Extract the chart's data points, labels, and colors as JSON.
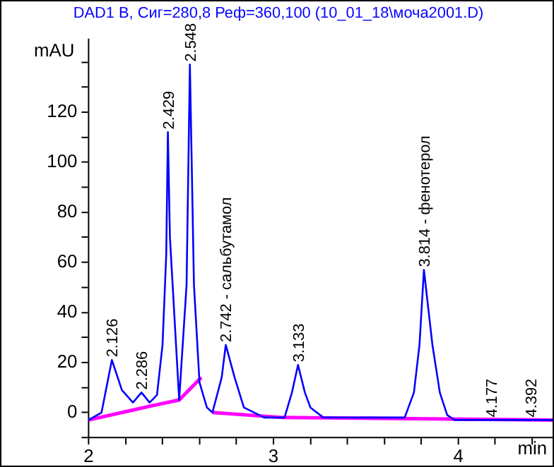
{
  "chart_data": {
    "type": "line",
    "title": "DAD1 B, Сиг=280,8 Реф=360,100 (10_01_18\\моча2001.D)",
    "xlabel": "min",
    "ylabel": "mAU",
    "series": [
      {
        "color": "#0000ff",
        "x": [
          2,
          2.07,
          2.126,
          2.18,
          2.24,
          2.286,
          2.33,
          2.37,
          2.4,
          2.42,
          2.429,
          2.44,
          2.49,
          2.53,
          2.548,
          2.57,
          2.6,
          2.64,
          2.67,
          2.72,
          2.742,
          2.79,
          2.84,
          2.95,
          3.06,
          3.1,
          3.133,
          3.17,
          3.2,
          3.27,
          3.71,
          3.76,
          3.79,
          3.814,
          3.84,
          3.86,
          3.9,
          3.94,
          3.98,
          4.51
        ],
        "values": [
          -3,
          0,
          21,
          9,
          4,
          8,
          4,
          7,
          27,
          63,
          112,
          70,
          5,
          51,
          139,
          51,
          12,
          2,
          0,
          14,
          27,
          14,
          2,
          -2,
          -2,
          8,
          19,
          8,
          2,
          -2,
          -2,
          8,
          27,
          57,
          40,
          27,
          8,
          -1,
          -3,
          -3
        ]
      },
      {
        "color": "#ff00ff",
        "x": [
          2,
          2.24,
          2.33,
          2.49,
          2.61,
          2.64,
          2.67,
          3.05,
          4.51
        ],
        "values": [
          -3,
          1,
          2.5,
          5,
          14,
          null,
          0,
          -2,
          -3
        ]
      }
    ],
    "xlim": [
      2,
      4.51
    ],
    "ylim": [
      -10,
      149
    ],
    "xticks": [
      2,
      {
        "value": 2.2,
        "label": null
      },
      {
        "value": 2.4,
        "label": null
      },
      {
        "value": 2.6,
        "label": null
      },
      {
        "value": 2.8,
        "label": null
      },
      3,
      {
        "value": 3.2,
        "label": null
      },
      {
        "value": 3.4,
        "label": null
      },
      {
        "value": 3.6,
        "label": null
      },
      {
        "value": 3.8,
        "label": null
      },
      4,
      {
        "value": 4.2,
        "label": null
      },
      {
        "value": 4.4,
        "label": null
      }
    ],
    "yticks": [
      {
        "value": -10,
        "label": null
      },
      0,
      {
        "value": 10,
        "label": null
      },
      20,
      {
        "value": 30,
        "label": null
      },
      40,
      {
        "value": 50,
        "label": null
      },
      60,
      {
        "value": 70,
        "label": null
      },
      80,
      {
        "value": 90,
        "label": null
      },
      100,
      {
        "value": 110,
        "label": null
      },
      120,
      {
        "value": 130,
        "label": null
      },
      {
        "value": 140,
        "label": null
      }
    ],
    "annotations": [
      {
        "text": "2.126",
        "x": 2.126,
        "y": 21
      },
      {
        "text": "2.286",
        "x": 2.286,
        "y": 8
      },
      {
        "text": "2.429",
        "x": 2.429,
        "y": 112
      },
      {
        "text": "2.548",
        "x": 2.548,
        "y": 139
      },
      {
        "text": "2.742 - сальбутамол",
        "x": 2.742,
        "y": 27
      },
      {
        "text": "3.133",
        "x": 3.133,
        "y": 19
      },
      {
        "text": "3.814 - фенотерол",
        "x": 3.814,
        "y": 57
      },
      {
        "text": "4.177",
        "x": 4.177,
        "y": -3
      },
      {
        "text": "4.392",
        "x": 4.392,
        "y": -3
      }
    ],
    "grid": false,
    "legend": false,
    "marker": "none",
    "line_style": "solid"
  }
}
